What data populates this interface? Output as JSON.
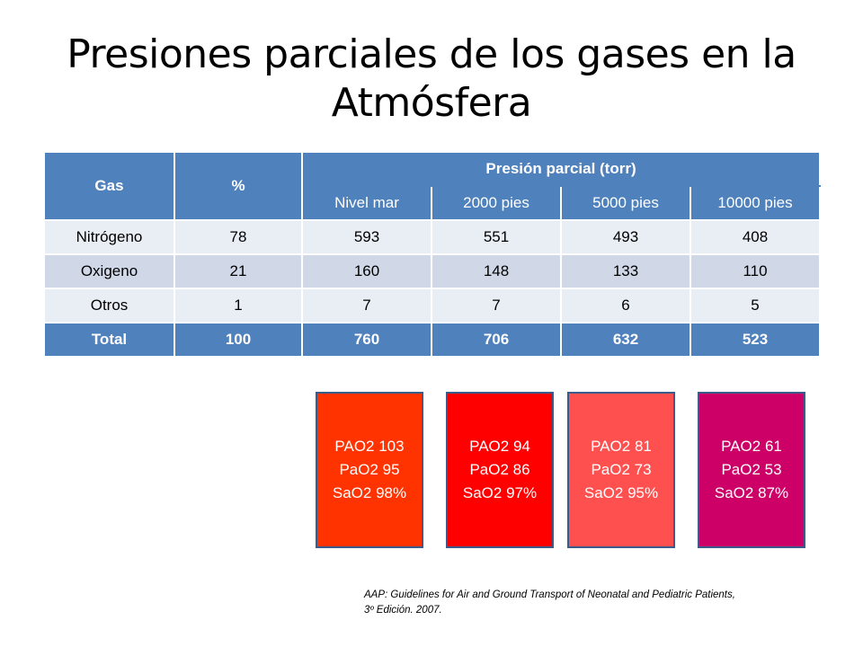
{
  "title": "Presiones parciales de los gases en la Atmósfera",
  "table": {
    "headers": {
      "gas": "Gas",
      "pct": "%",
      "presion": "Presión parcial (torr)",
      "levels": [
        "Nivel mar",
        "2000 pies",
        "5000 pies",
        "10000 pies"
      ]
    },
    "rows": [
      {
        "gas": "Nitrógeno",
        "pct": "78",
        "values": [
          "593",
          "551",
          "493",
          "408"
        ]
      },
      {
        "gas": "Oxigeno",
        "pct": "21",
        "values": [
          "160",
          "148",
          "133",
          "110"
        ]
      },
      {
        "gas": "Otros",
        "pct": "1",
        "values": [
          "7",
          "7",
          "6",
          "5"
        ]
      }
    ],
    "total": {
      "gas": "Total",
      "pct": "100",
      "values": [
        "760",
        "706",
        "632",
        "523"
      ]
    }
  },
  "boxes": [
    {
      "lines": [
        "PAO2 103",
        "PaO2 95",
        "SaO2 98%"
      ],
      "color": "#ff3300"
    },
    {
      "lines": [
        "PAO2 94",
        "PaO2 86",
        "SaO2 97%"
      ],
      "color": "#ff0000"
    },
    {
      "lines": [
        "PAO2 81",
        "PaO2 73",
        "SaO2 95%"
      ],
      "color": "#ff5050"
    },
    {
      "lines": [
        "PAO2 61",
        "PaO2 53",
        "SaO2 87%"
      ],
      "color": "#cc0066"
    }
  ],
  "citation": {
    "line1": "AAP: Guidelines for Air and Ground Transport of Neonatal and Pediatric Patients,",
    "line2": "3º Edición. 2007."
  }
}
